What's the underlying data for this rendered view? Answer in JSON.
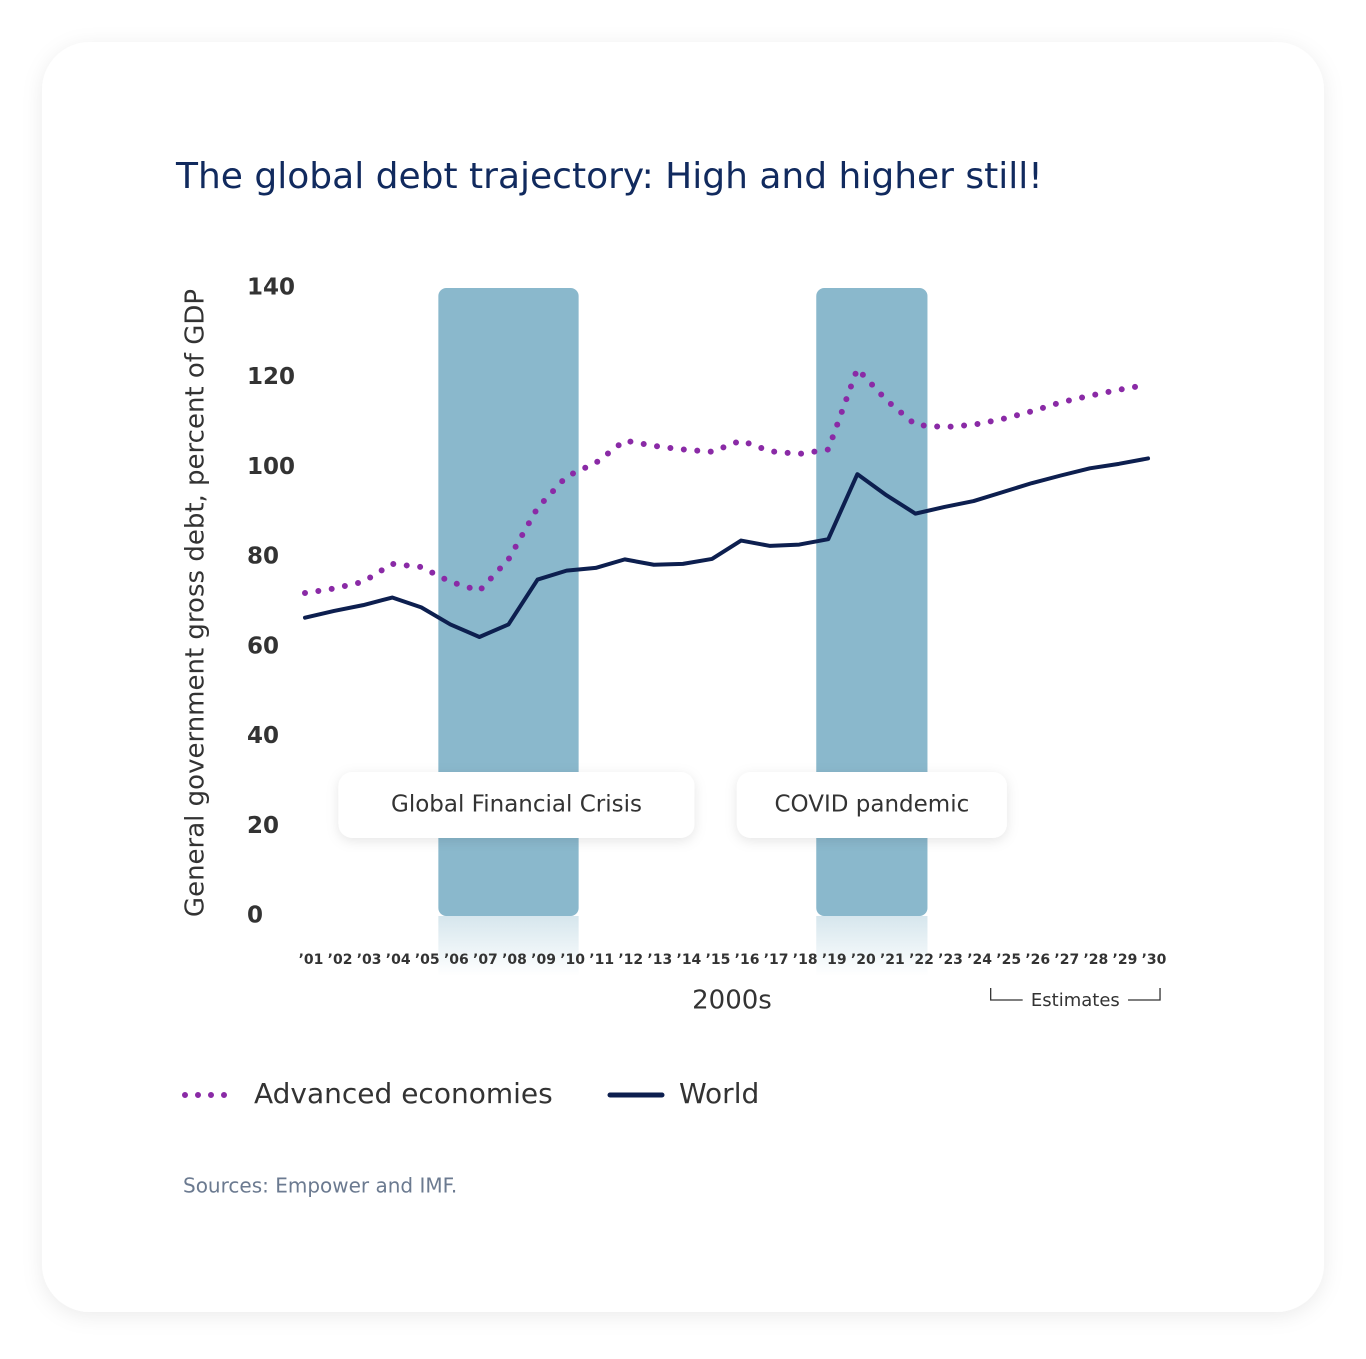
{
  "chart_data": {
    "type": "line",
    "title": "The global debt trajectory: High and higher still!",
    "y_label": "General government gross debt, percent of GDP",
    "x_label": "2000s",
    "categories": [
      "’01",
      "’02",
      "’03",
      "’04",
      "’05",
      "’06",
      "’07",
      "’08",
      "’09",
      "’10",
      "’11",
      "’12",
      "’13",
      "’14",
      "’15",
      "’16",
      "’17",
      "’18",
      "’19",
      "’20",
      "’21",
      "’22",
      "’23",
      "’24",
      "’25",
      "’26",
      "’27",
      "’28",
      "’29",
      "’30"
    ],
    "series": [
      {
        "name": "Advanced economies",
        "color": "#8a2aa6",
        "style": "dotted",
        "values": [
          72,
          73,
          74.5,
          78.5,
          77.8,
          74.5,
          72.5,
          79.5,
          91,
          98,
          101,
          106,
          104.8,
          104,
          103.5,
          106,
          103.6,
          103,
          104,
          122,
          115,
          109.5,
          109,
          109.5,
          110.8,
          112.5,
          114.5,
          116,
          117.3,
          118.5
        ]
      },
      {
        "name": "World",
        "color": "#0d1f4f",
        "style": "solid",
        "values": [
          66.5,
          68,
          69.3,
          71,
          68.8,
          65,
          62.2,
          65,
          75,
          77,
          77.6,
          79.5,
          78.3,
          78.5,
          79.6,
          83.7,
          82.5,
          82.8,
          84,
          98.5,
          93.8,
          89.7,
          91.2,
          92.5,
          94.5,
          96.5,
          98.2,
          99.8,
          100.8,
          102
        ]
      }
    ],
    "ylim": [
      0,
      140
    ],
    "yticks": [
      0,
      20,
      40,
      60,
      80,
      100,
      120,
      140
    ],
    "grid": false,
    "shaded_regions": [
      {
        "label": "Global Financial Crisis",
        "start": "’06",
        "end": "’10",
        "color": "#8ab8cc"
      },
      {
        "label": "COVID pandemic",
        "start": "’19",
        "end": "’22",
        "color": "#8ab8cc"
      }
    ],
    "estimates": {
      "label": "Estimates",
      "start": "’25",
      "end": "’30"
    },
    "source": "Sources: Empower and IMF."
  }
}
